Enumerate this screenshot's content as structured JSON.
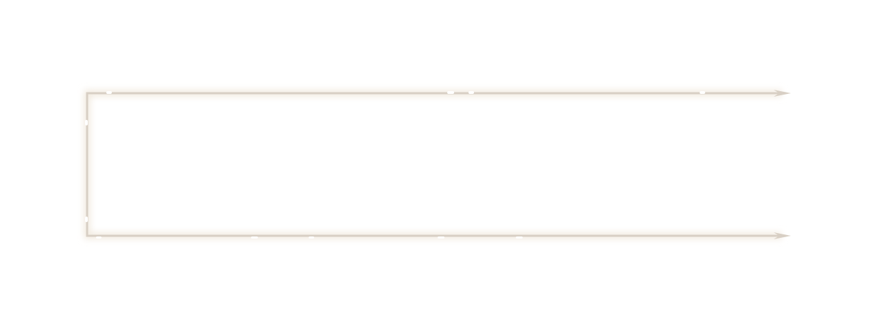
{
  "frame": {
    "line_color": "#d8cfc4",
    "glow_color": "#efe6d9",
    "arrow_icon": "arrow-right-icon"
  }
}
